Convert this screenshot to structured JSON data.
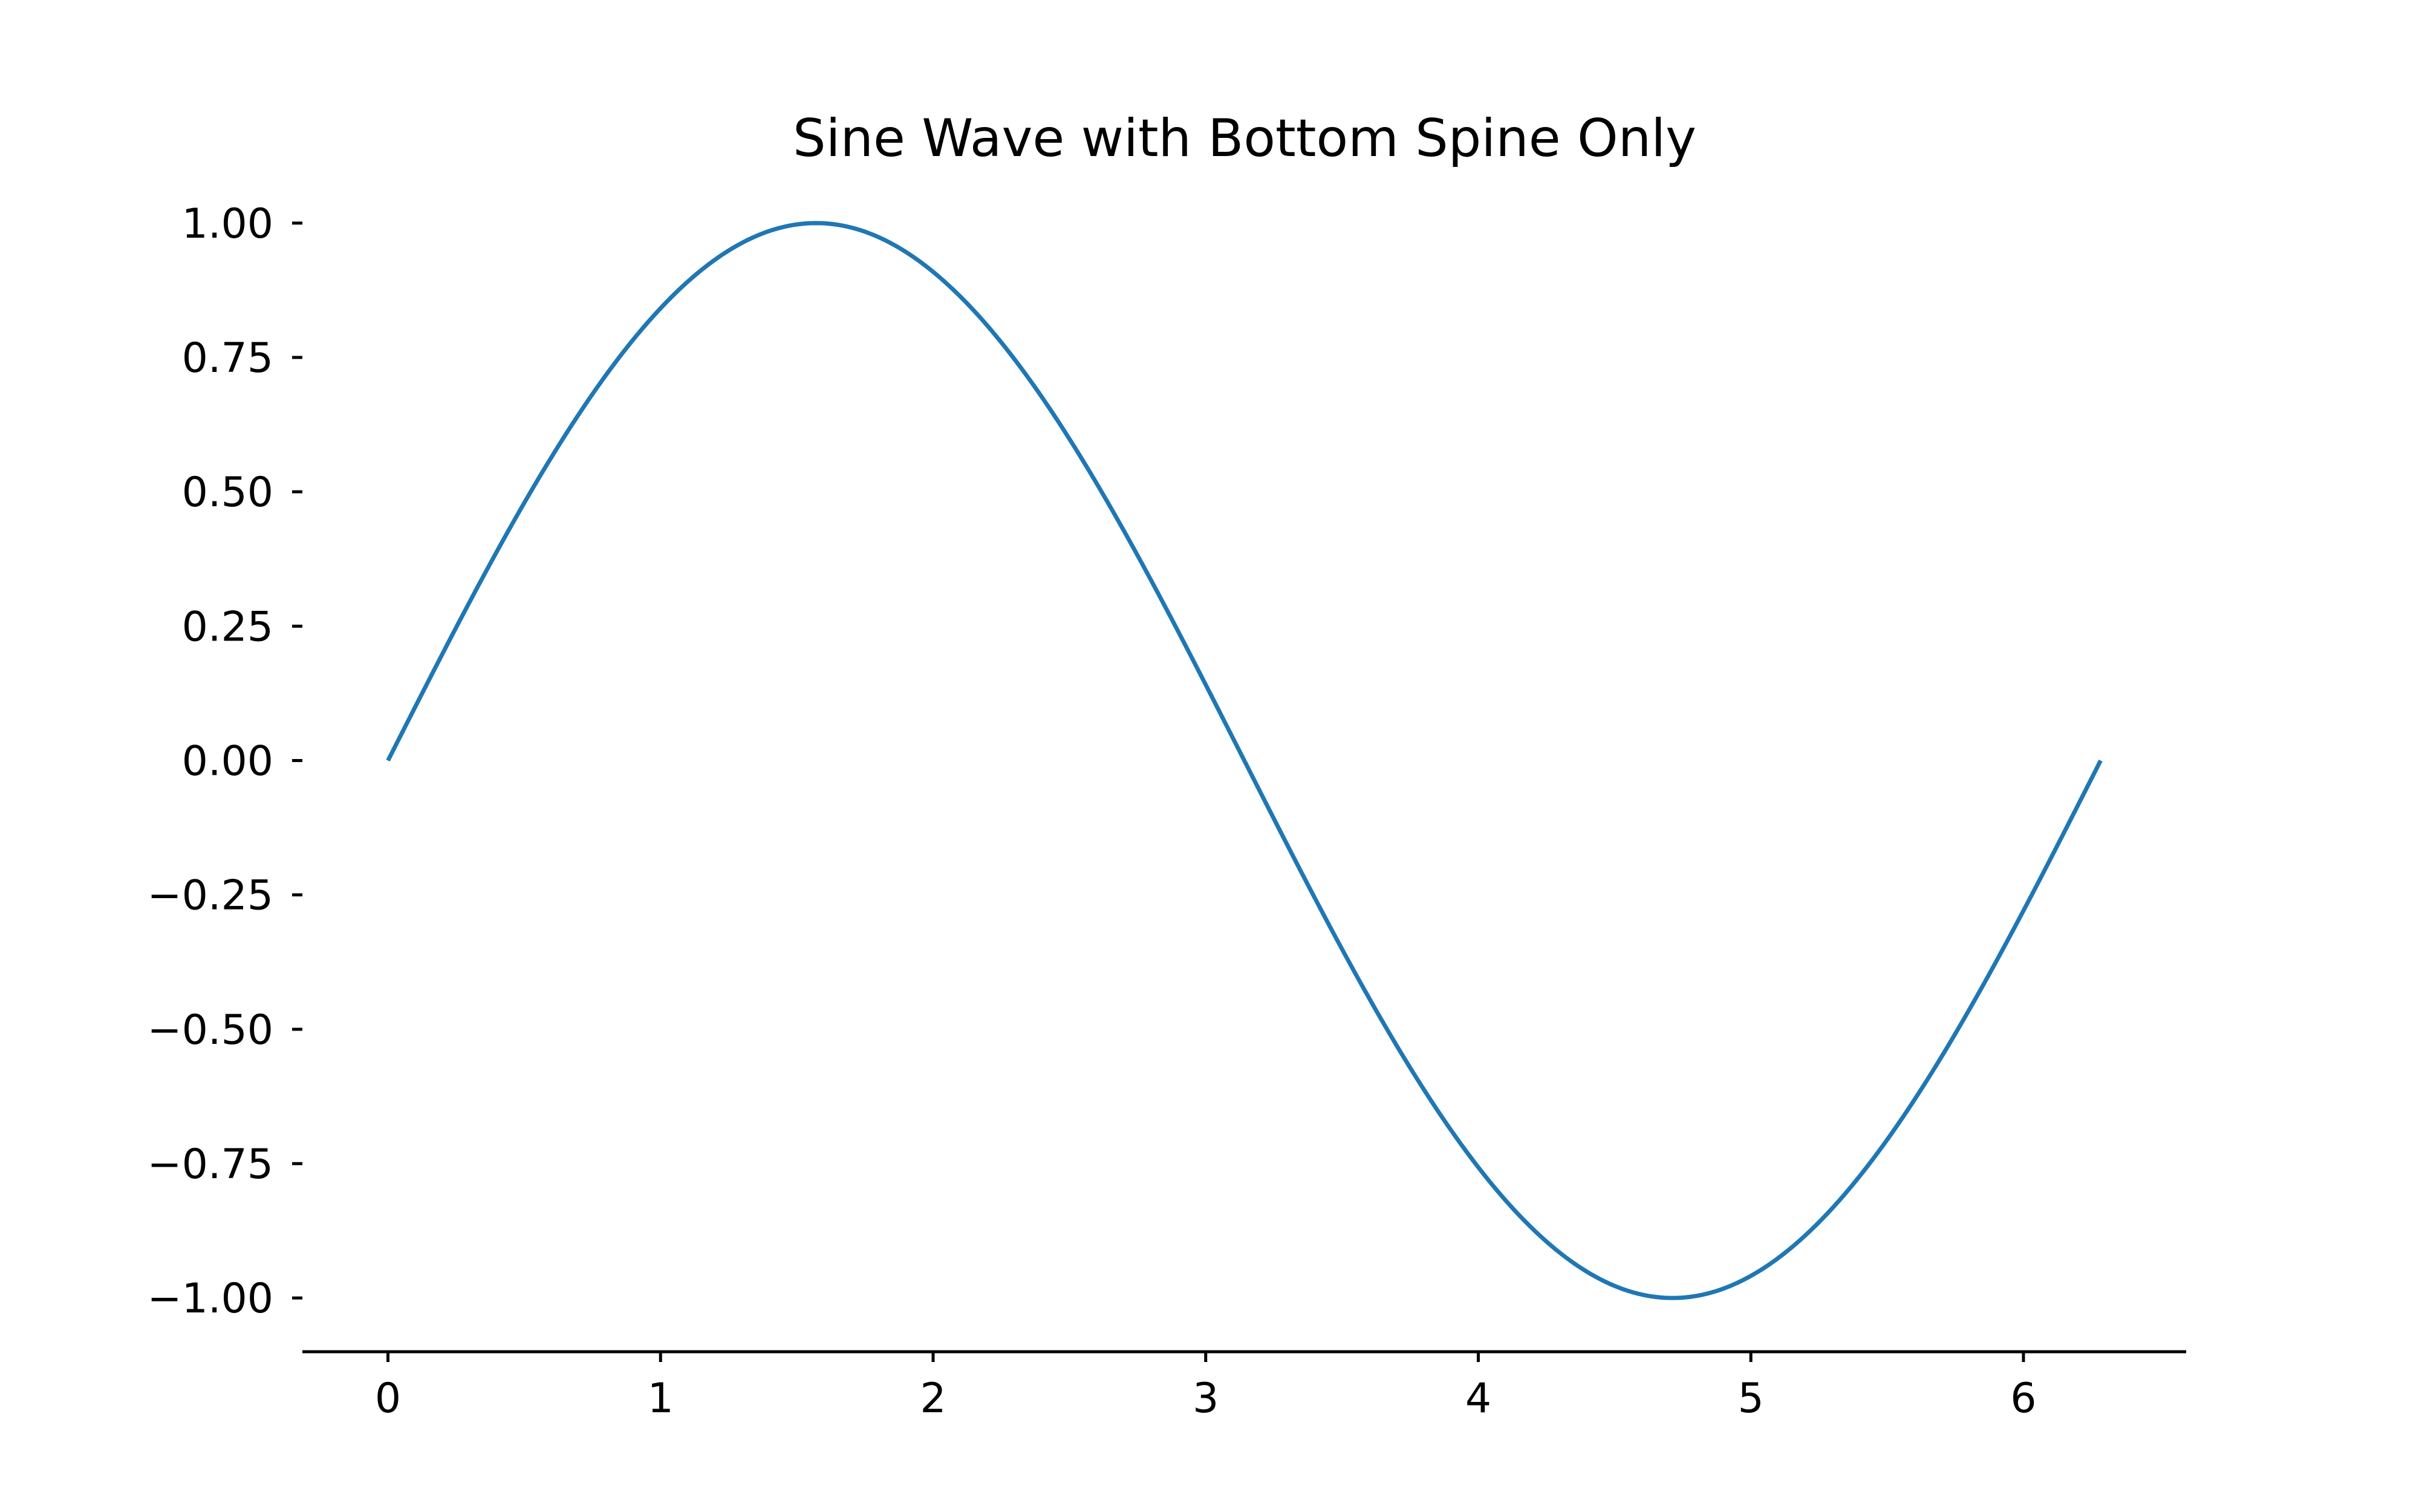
{
  "chart_data": {
    "type": "line",
    "title": "Sine Wave with Bottom Spine Only",
    "xlabel": "",
    "ylabel": "",
    "xlim": [
      -0.314,
      6.597
    ],
    "ylim": [
      -1.1,
      1.1
    ],
    "x_ticks": [
      0,
      1,
      2,
      3,
      4,
      5,
      6
    ],
    "x_tick_labels": [
      "0",
      "1",
      "2",
      "3",
      "4",
      "5",
      "6"
    ],
    "y_ticks": [
      1.0,
      0.75,
      0.5,
      0.25,
      0.0,
      -0.25,
      -0.5,
      -0.75,
      -1.0
    ],
    "y_tick_labels": [
      "1.00",
      "0.75",
      "0.50",
      "0.25",
      "0.00",
      "−0.25",
      "−0.50",
      "−0.75",
      "−1.00"
    ],
    "spines": {
      "bottom": true,
      "left": false,
      "top": false,
      "right": false
    },
    "grid": false,
    "series": [
      {
        "color": "#1f77b4",
        "function": "sin(x)",
        "x": [
          0.0,
          0.1309,
          0.2618,
          0.3927,
          0.5236,
          0.6545,
          0.7854,
          0.9163,
          1.0472,
          1.1781,
          1.309,
          1.4399,
          1.5708,
          1.7017,
          1.8326,
          1.9635,
          2.0944,
          2.2253,
          2.3562,
          2.4871,
          2.618,
          2.7489,
          2.8798,
          3.0107,
          3.1416,
          3.2725,
          3.4034,
          3.5343,
          3.6652,
          3.7961,
          3.927,
          4.0579,
          4.1888,
          4.3197,
          4.4506,
          4.5815,
          4.7124,
          4.8433,
          4.9742,
          5.1051,
          5.236,
          5.3669,
          5.4978,
          5.6287,
          5.7596,
          5.8905,
          6.0214,
          6.1523,
          6.2832
        ],
        "y": [
          0.0,
          0.1305,
          0.2588,
          0.3827,
          0.5,
          0.6088,
          0.7071,
          0.7934,
          0.866,
          0.9239,
          0.9659,
          0.9914,
          1.0,
          0.9914,
          0.9659,
          0.9239,
          0.866,
          0.7934,
          0.7071,
          0.6088,
          0.5,
          0.3827,
          0.2588,
          0.1305,
          0.0,
          -0.1305,
          -0.2588,
          -0.3827,
          -0.5,
          -0.6088,
          -0.7071,
          -0.7934,
          -0.866,
          -0.9239,
          -0.9659,
          -0.9914,
          -1.0,
          -0.9914,
          -0.9659,
          -0.9239,
          -0.866,
          -0.7934,
          -0.7071,
          -0.6088,
          -0.5,
          -0.3827,
          -0.2588,
          -0.1305,
          0.0
        ]
      }
    ]
  }
}
